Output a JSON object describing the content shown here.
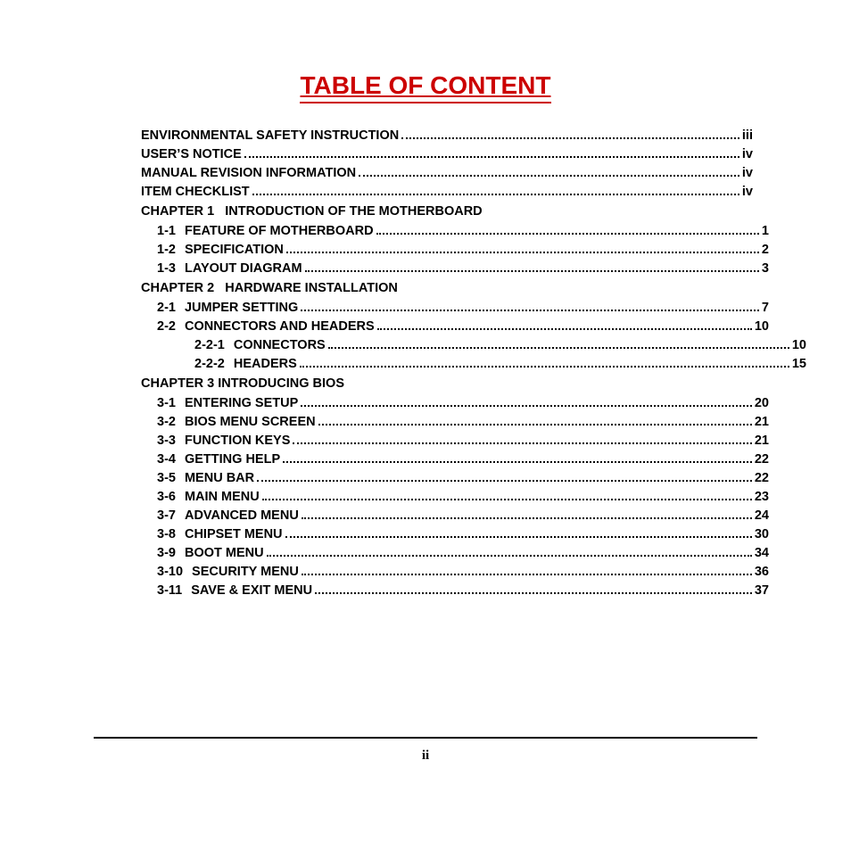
{
  "title": "TABLE OF CONTENT",
  "page_number": "ii",
  "colors": {
    "title_color": "#cc0000",
    "text_color": "#000000",
    "background": "#ffffff"
  },
  "typography": {
    "title_fontsize": 28,
    "body_fontsize": 14.5,
    "line_height": 21,
    "body_weight": "bold"
  },
  "entries": [
    {
      "indent": 0,
      "num": "",
      "label": "ENVIRONMENTAL SAFETY INSTRUCTION",
      "page": "iii"
    },
    {
      "indent": 0,
      "num": "",
      "label": "USER’S NOTICE",
      "page": "iv"
    },
    {
      "indent": 0,
      "num": "",
      "label": "MANUAL REVISION INFORMATION",
      "page": "iv"
    },
    {
      "indent": 0,
      "num": "",
      "label": "ITEM CHECKLIST",
      "page": "iv"
    },
    {
      "indent": 0,
      "num": "",
      "label": "CHAPTER 1   INTRODUCTION OF THE MOTHERBOARD",
      "page": "",
      "no_dots": true
    },
    {
      "indent": 1,
      "num": "1-1",
      "label": "FEATURE OF MOTHERBOARD",
      "page": "1"
    },
    {
      "indent": 1,
      "num": "1-2",
      "label": "SPECIFICATION",
      "page": "2"
    },
    {
      "indent": 1,
      "num": "1-3",
      "label": "LAYOUT DIAGRAM",
      "page": "3"
    },
    {
      "indent": 0,
      "num": "",
      "label": "CHAPTER 2   HARDWARE INSTALLATION",
      "page": "",
      "no_dots": true
    },
    {
      "indent": 1,
      "num": "2-1",
      "label": "JUMPER SETTING",
      "page": "7"
    },
    {
      "indent": 1,
      "num": "2-2",
      "label": "CONNECTORS AND HEADERS",
      "page": "10"
    },
    {
      "indent": 2,
      "num": "2-2-1",
      "label": "CONNECTORS",
      "page": "10"
    },
    {
      "indent": 2,
      "num": "2-2-2",
      "label": "HEADERS",
      "page": "15"
    },
    {
      "indent": 0,
      "num": "",
      "label": "CHAPTER 3 INTRODUCING BIOS",
      "page": "",
      "no_dots": true
    },
    {
      "indent": 1,
      "num": "3-1",
      "label": "ENTERING SETUP",
      "page": "20"
    },
    {
      "indent": 1,
      "num": "3-2",
      "label": "BIOS MENU SCREEN",
      "page": "21"
    },
    {
      "indent": 1,
      "num": "3-3",
      "label": "FUNCTION KEYS",
      "page": "21"
    },
    {
      "indent": 1,
      "num": "3-4",
      "label": "GETTING HELP",
      "page": "22"
    },
    {
      "indent": 1,
      "num": "3-5",
      "label": "MENU BAR",
      "page": "22"
    },
    {
      "indent": 1,
      "num": "3-6",
      "label": "MAIN MENU",
      "page": "23"
    },
    {
      "indent": 1,
      "num": "3-7",
      "label": "ADVANCED MENU",
      "page": "24"
    },
    {
      "indent": 1,
      "num": "3-8",
      "label": "CHIPSET MENU",
      "page": "30"
    },
    {
      "indent": 1,
      "num": "3-9",
      "label": "BOOT MENU",
      "page": "34"
    },
    {
      "indent": 1,
      "num": "3-10",
      "label": "SECURITY MENU",
      "page": "36"
    },
    {
      "indent": 1,
      "num": "3-11",
      "label": "SAVE & EXIT MENU",
      "page": "37"
    }
  ]
}
